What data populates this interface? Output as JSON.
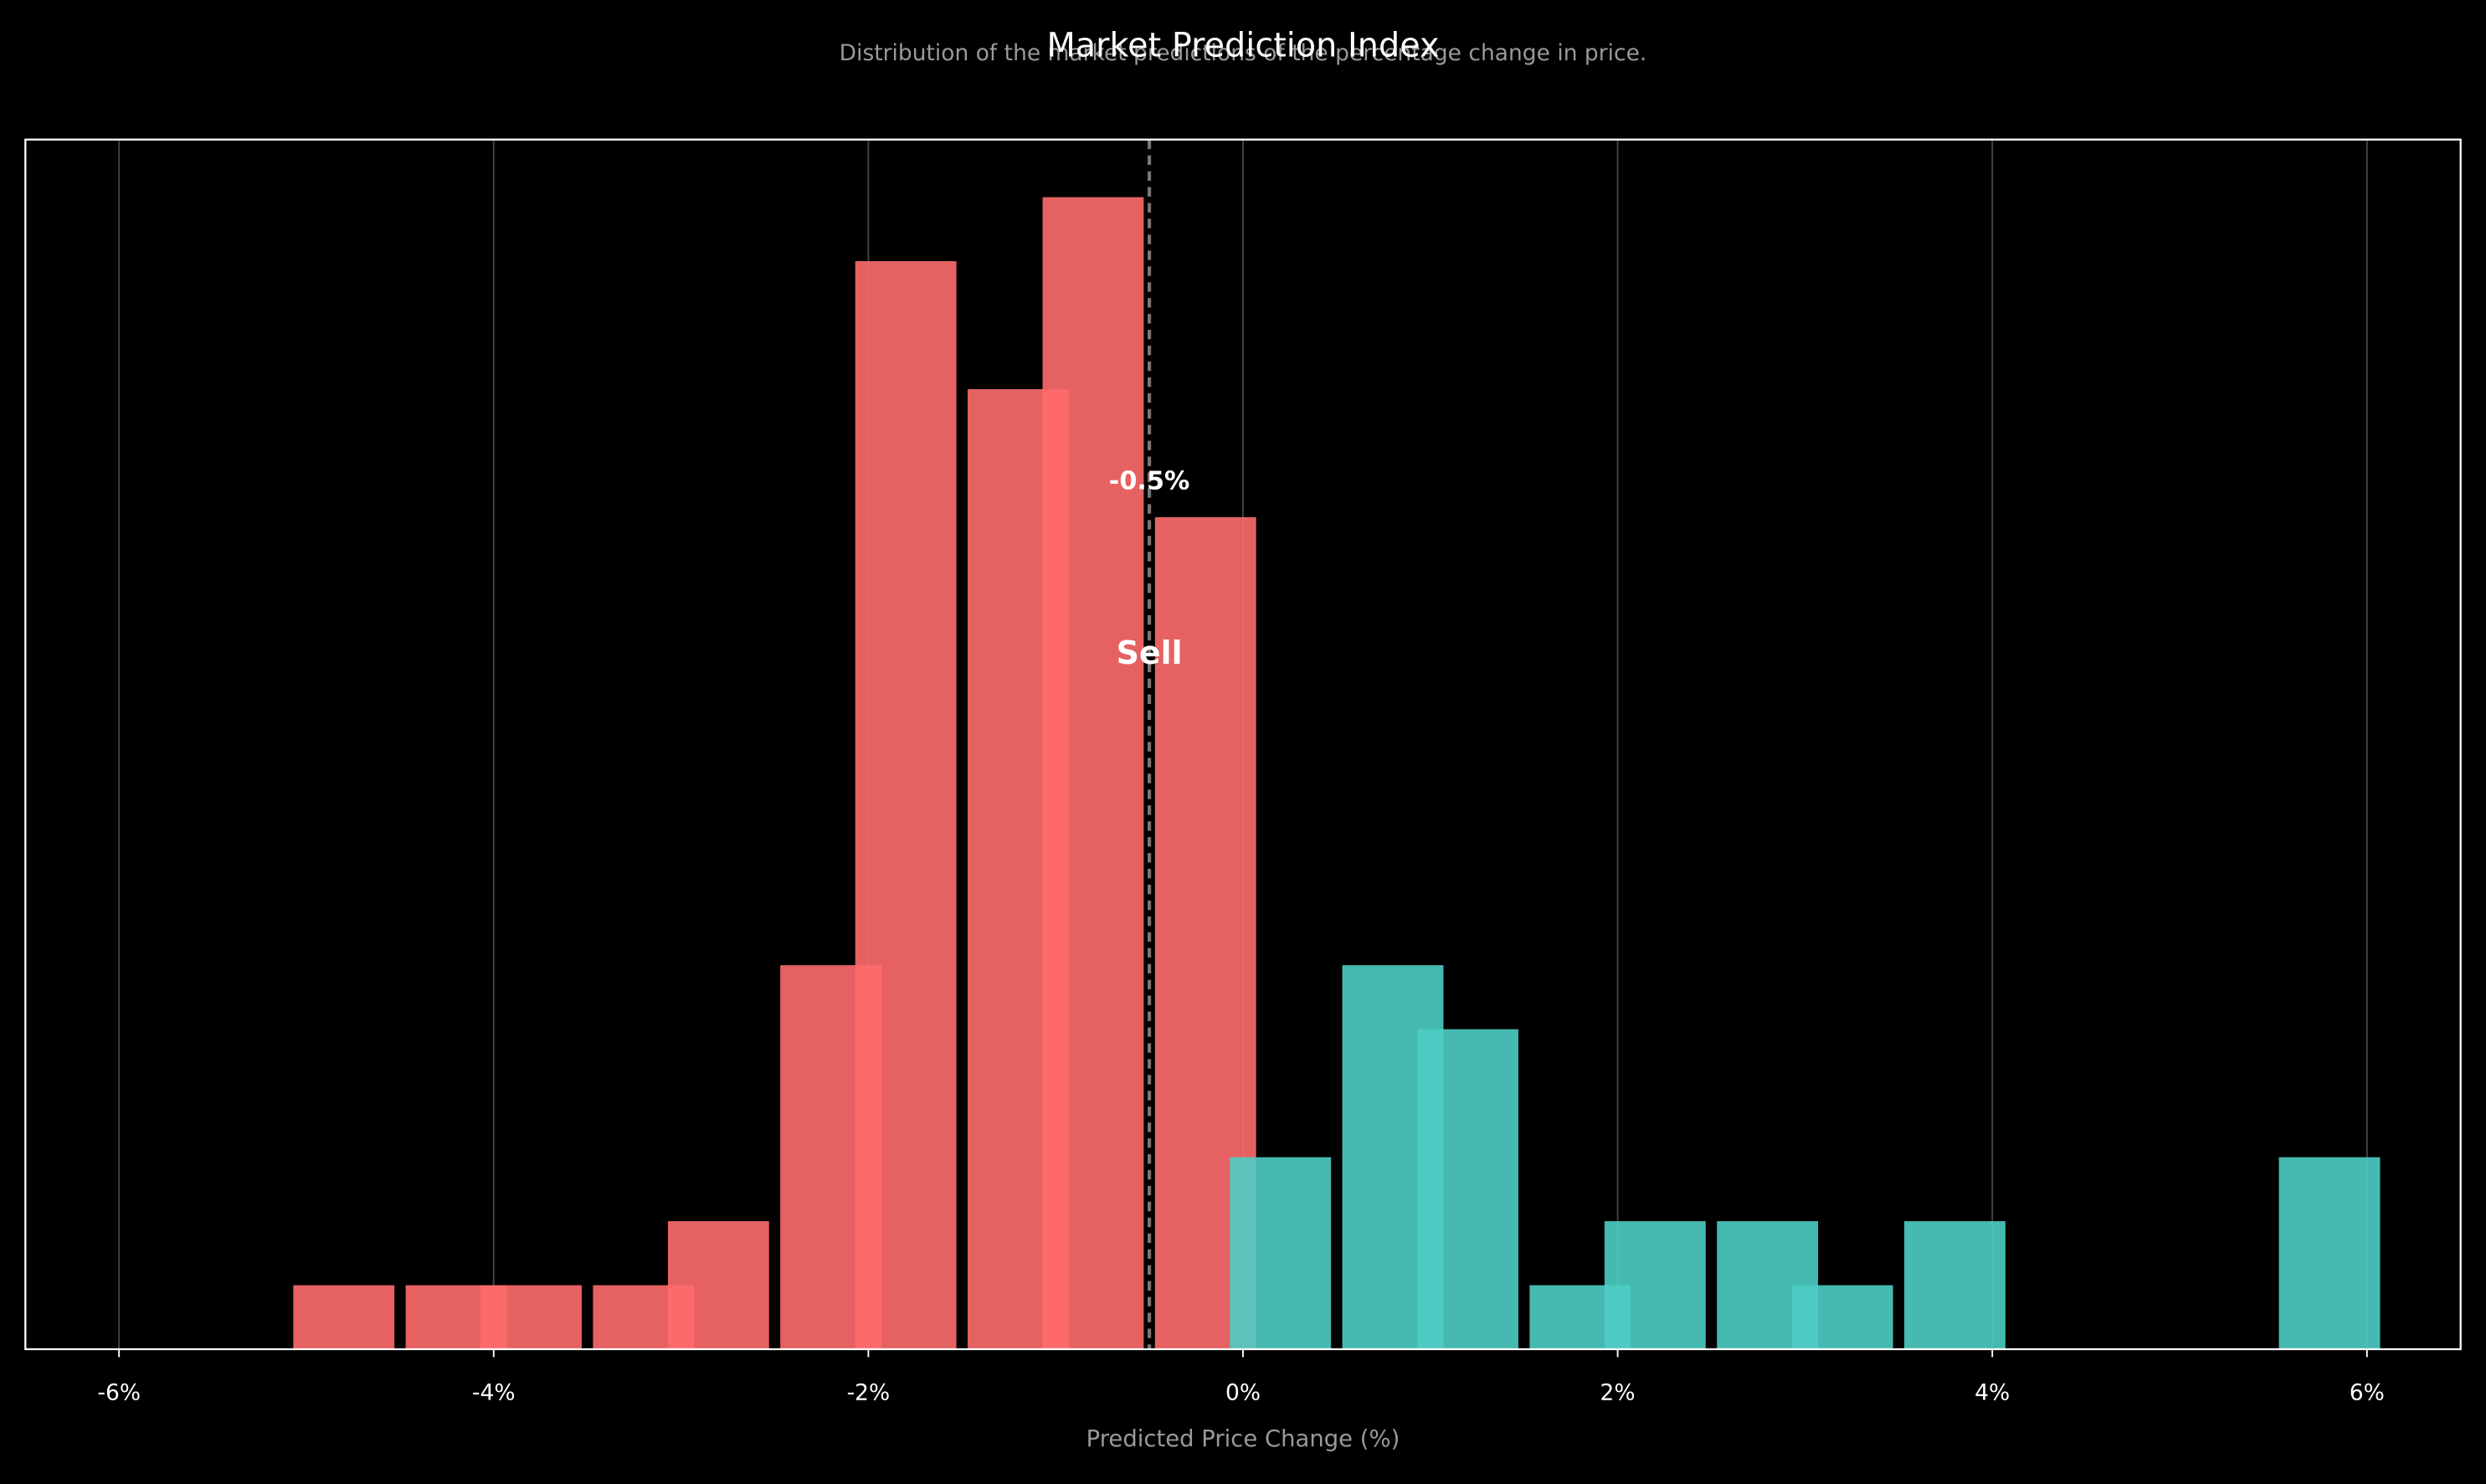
{
  "chart_data": {
    "type": "histogram",
    "title": "Market Prediction Index",
    "subtitle": "Distribution of the market predictions of the percentage change in price.",
    "x_label": "Predicted Price Change (%)",
    "series": [
      {
        "color": "#ff6b6b",
        "x": [
          -4.8,
          -4.2,
          -3.8,
          -3.2,
          -2.8,
          -2.2,
          -1.8,
          -1.2,
          -0.8,
          -0.2
        ],
        "values": [
          1,
          1,
          1,
          1,
          2,
          6,
          17,
          15,
          18,
          13
        ]
      },
      {
        "color": "#4ecdc4",
        "x": [
          0.2,
          0.8,
          1.2,
          1.8,
          2.2,
          2.8,
          3.2,
          3.8,
          5.8
        ],
        "values": [
          3,
          6,
          5,
          1,
          2,
          2,
          1,
          2,
          3
        ]
      }
    ],
    "marker": {
      "value": -0.5,
      "label": "-0.5%",
      "signal": "Sell"
    },
    "xlim": [
      -6.5,
      6.5
    ],
    "ylim": [
      0,
      18.9
    ],
    "xticks": [
      {
        "value": -6,
        "label": "-6%"
      },
      {
        "value": -4,
        "label": "-4%"
      },
      {
        "value": -2,
        "label": "-2%"
      },
      {
        "value": 0,
        "label": "0%"
      },
      {
        "value": 2,
        "label": "2%"
      },
      {
        "value": 4,
        "label": "4%"
      },
      {
        "value": 6,
        "label": "6%"
      }
    ],
    "grid": true
  }
}
